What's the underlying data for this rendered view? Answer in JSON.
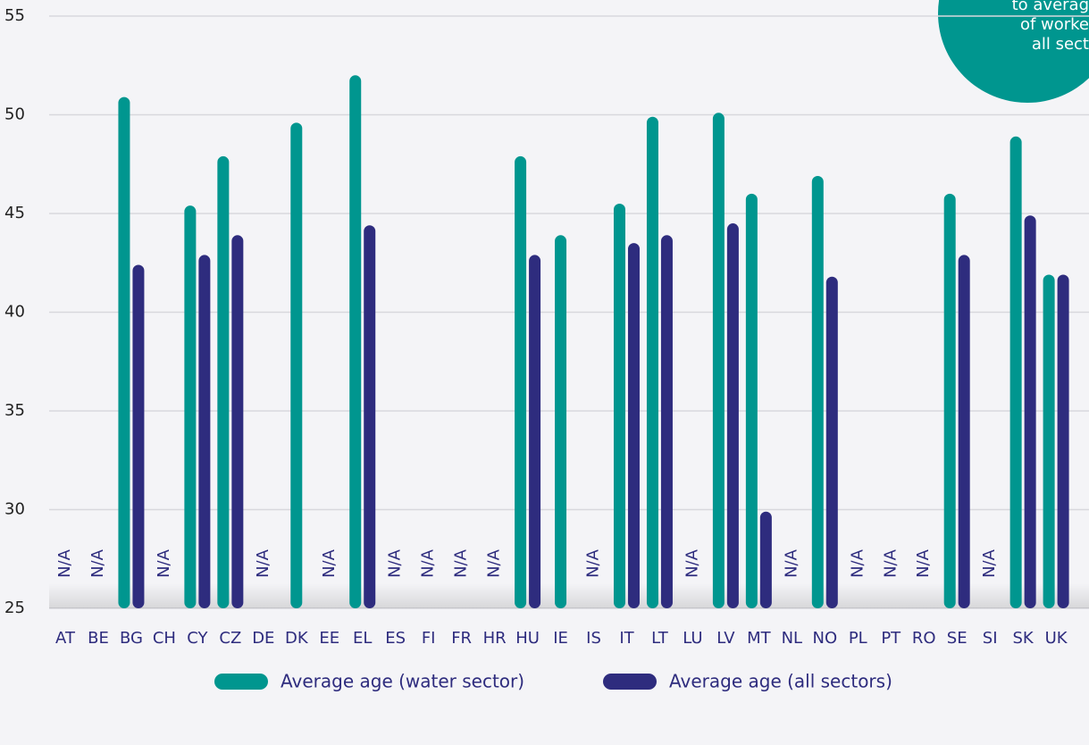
{
  "chart_data": {
    "type": "bar",
    "categories": [
      "AT",
      "BE",
      "BG",
      "CH",
      "CY",
      "CZ",
      "DE",
      "DK",
      "EE",
      "EL",
      "ES",
      "FI",
      "FR",
      "HR",
      "HU",
      "IE",
      "IS",
      "IT",
      "LT",
      "LU",
      "LV",
      "MT",
      "NL",
      "NO",
      "PL",
      "PT",
      "RO",
      "SE",
      "SI",
      "SK",
      "UK"
    ],
    "series": [
      {
        "name": "Average age (water sector)",
        "color": "#00968f",
        "values": [
          null,
          null,
          50.9,
          null,
          45.4,
          47.9,
          null,
          49.6,
          null,
          52,
          null,
          null,
          null,
          null,
          47.9,
          43.9,
          null,
          45.5,
          49.9,
          null,
          50.1,
          46,
          null,
          46.9,
          null,
          null,
          null,
          46,
          null,
          48.9,
          41.9
        ]
      },
      {
        "name": "Average age (all sectors)",
        "color": "#2e2c7e",
        "values": [
          null,
          null,
          42.4,
          null,
          42.9,
          43.9,
          null,
          null,
          null,
          44.4,
          null,
          null,
          null,
          null,
          42.9,
          null,
          null,
          43.5,
          43.9,
          null,
          44.5,
          29.9,
          null,
          41.8,
          null,
          null,
          null,
          42.9,
          null,
          44.9,
          41.9
        ]
      }
    ],
    "missing_label": "N/A",
    "annotation": [
      "to averag",
      "of worke",
      "all sect"
    ],
    "ylim": [
      25,
      55
    ],
    "yticks": [
      25,
      30,
      35,
      40,
      45,
      50,
      55
    ],
    "grid": true
  }
}
